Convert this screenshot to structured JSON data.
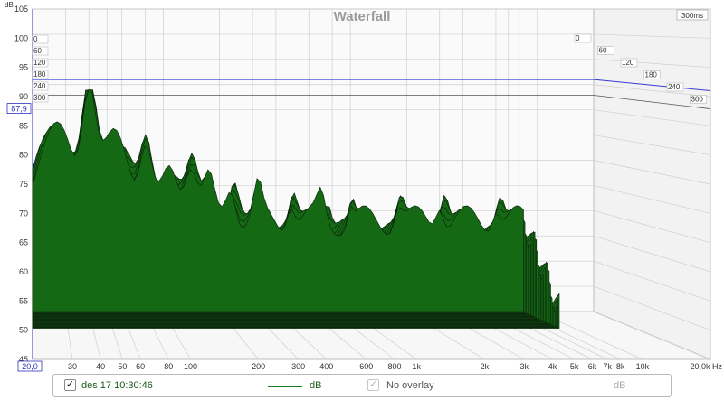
{
  "chart_data": {
    "type": "area",
    "title": "Waterfall",
    "ylabel": "dB",
    "ylim": [
      45,
      105
    ],
    "y_ticks": [
      45,
      50,
      55,
      60,
      65,
      70,
      75,
      80,
      85,
      90,
      95,
      100,
      105
    ],
    "xlim": [
      20,
      20000
    ],
    "x_scale": "log",
    "x_ticks": [
      30,
      40,
      50,
      60,
      80,
      100,
      200,
      300,
      400,
      600,
      800,
      1000,
      2000,
      3000,
      4000,
      5000,
      6000,
      7000,
      8000,
      10000
    ],
    "x_tick_labels": [
      "30",
      "40",
      "50",
      "60",
      "80",
      "100",
      "200",
      "300",
      "400",
      "600",
      "800",
      "1k",
      "2k",
      "3k",
      "4k",
      "5k",
      "6k",
      "7k",
      "8k",
      "10k"
    ],
    "x_start_label": "20,0",
    "x_end_label": "20,0k Hz",
    "y_marker_label": "87,9",
    "y_marker_value": 87.9,
    "y_limit_line": 91,
    "time_unit_label": "300ms",
    "time_labels": [
      "0",
      "60",
      "120",
      "180",
      "240",
      "300"
    ],
    "colors": {
      "surface": "#156915",
      "outline": "#0a200a",
      "limit": "#3a3ad0",
      "marker": "#3030c0",
      "grid": "#cfcfcf",
      "title": "#9a9a9a"
    }
  },
  "legend": {
    "checked_mark": "✓",
    "measurement_label": "des 17 10:30:46",
    "measurement_unit": "dB",
    "overlay_label": "No overlay",
    "overlay_unit": "dB"
  }
}
